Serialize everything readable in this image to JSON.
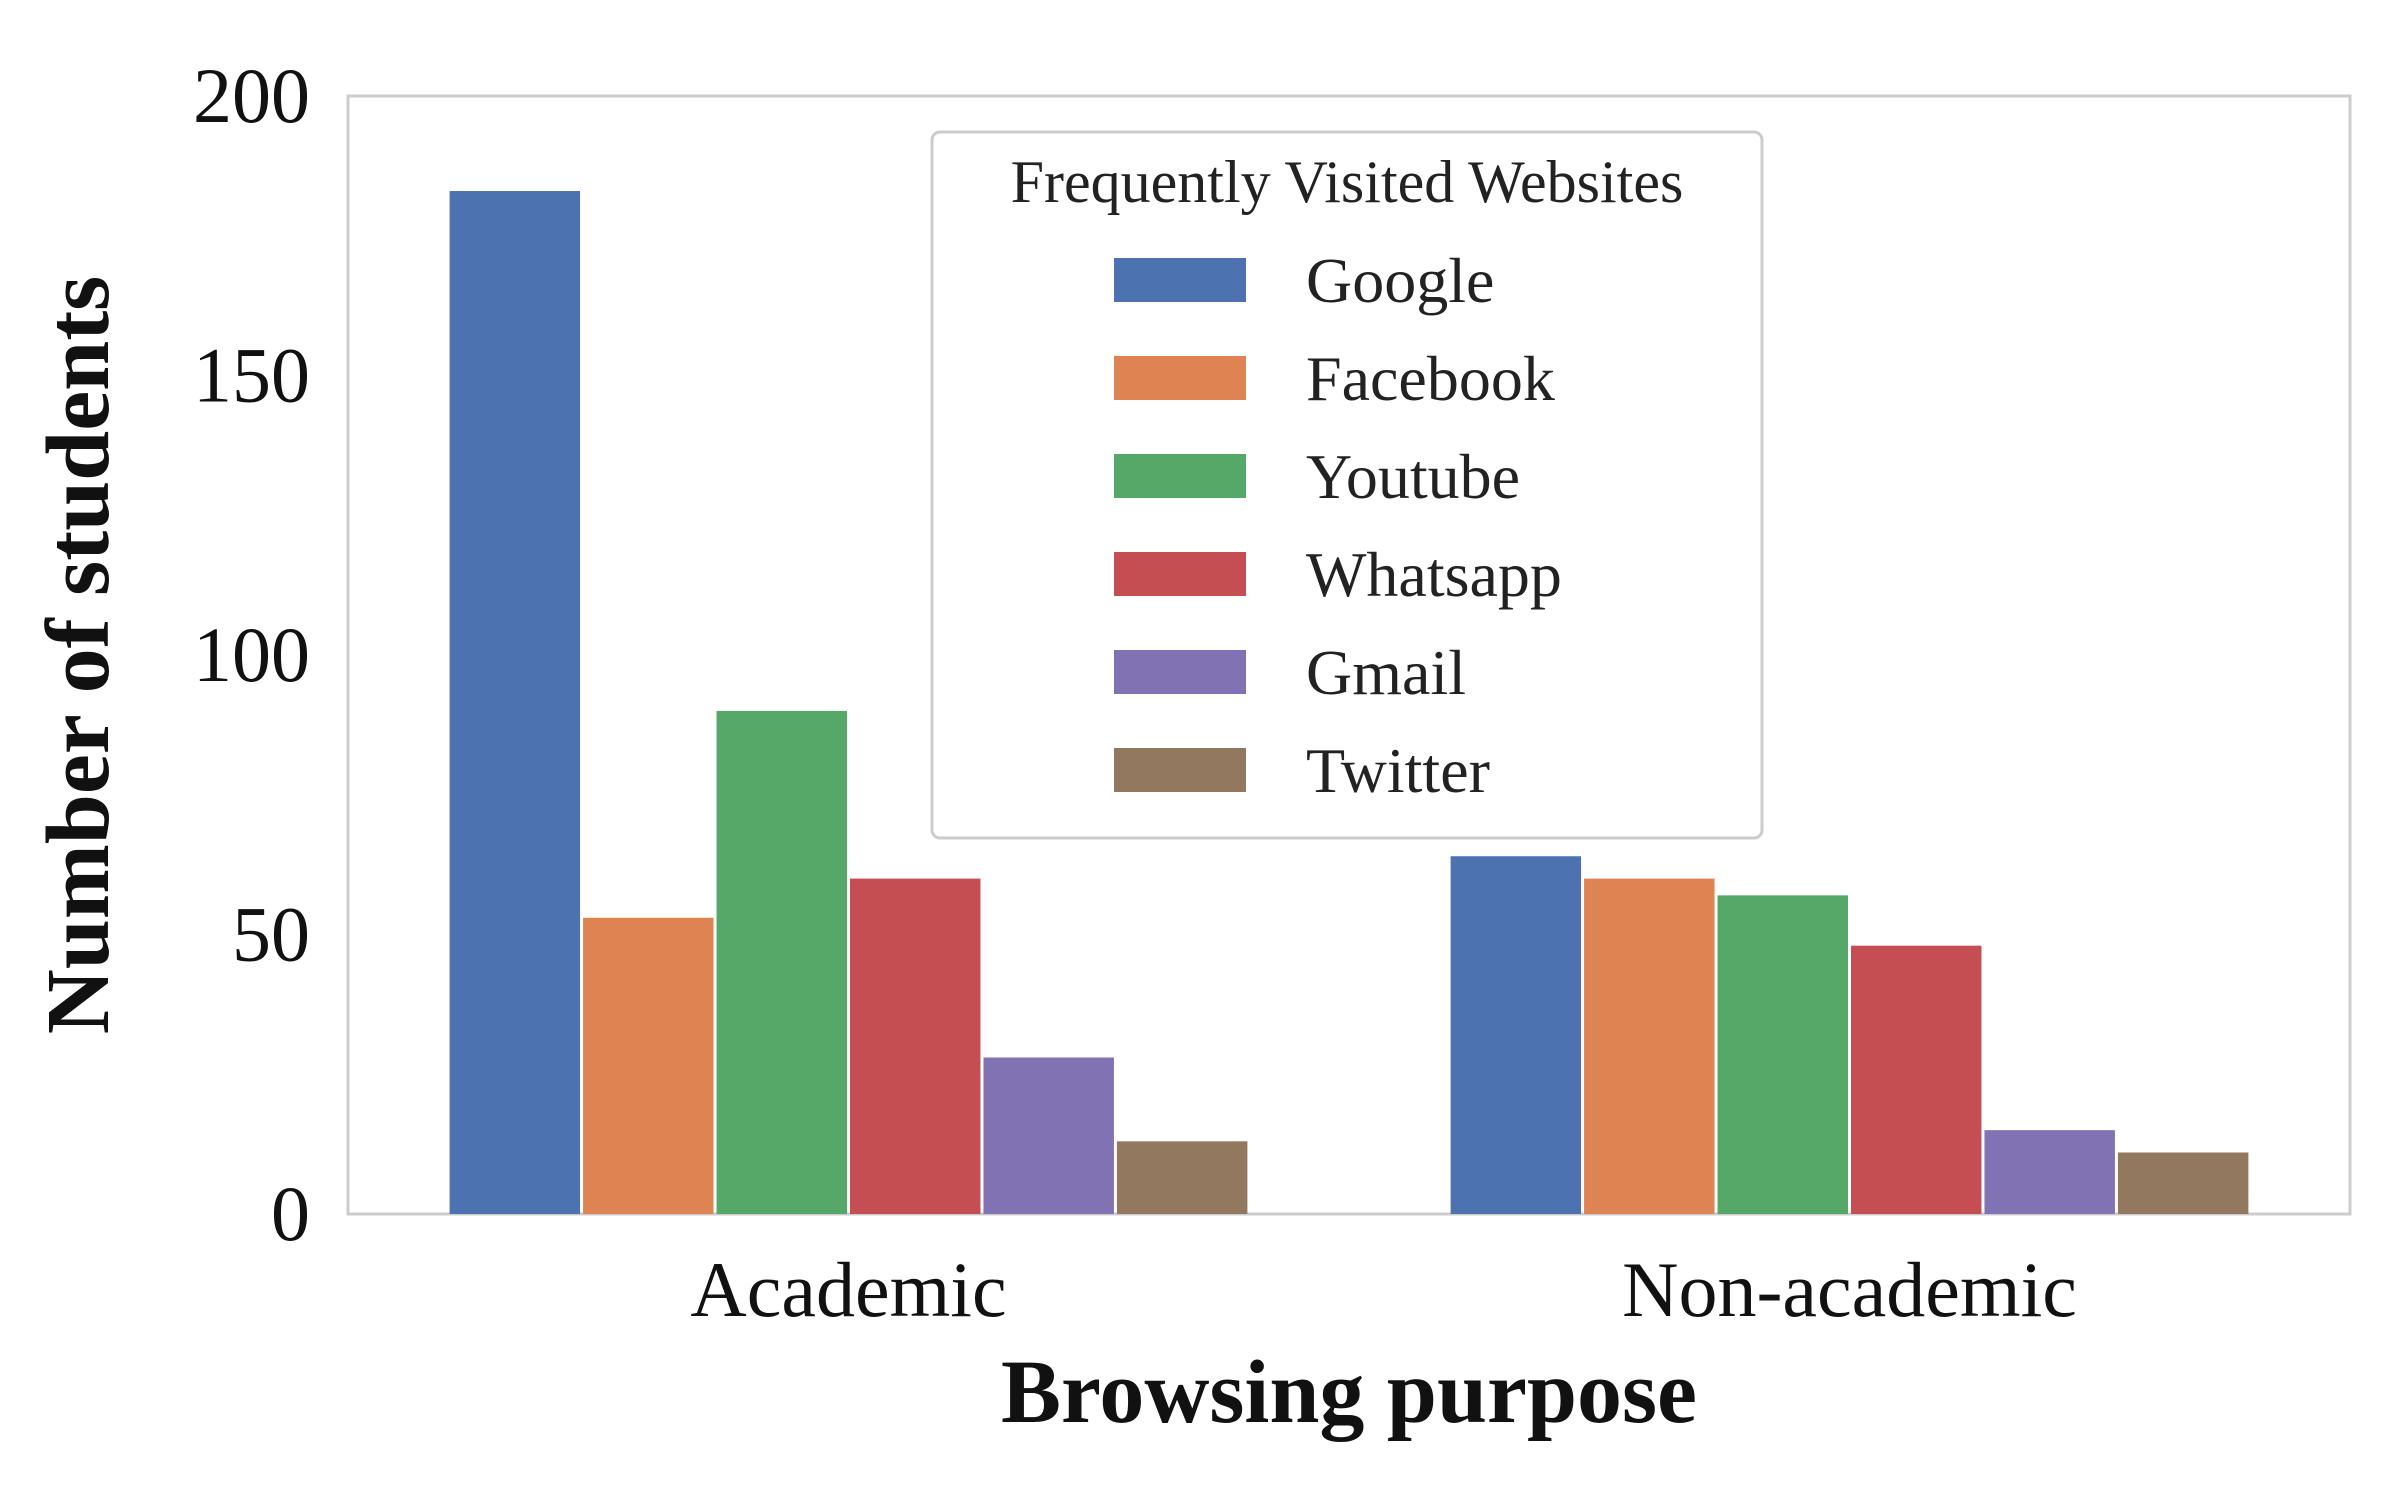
{
  "chart_data": {
    "type": "bar",
    "title": "",
    "xlabel": "Browsing purpose",
    "ylabel": "Number of students",
    "categories": [
      "Academic",
      "Non-academic"
    ],
    "ylim": [
      0,
      200
    ],
    "yticks": [
      "0",
      "50",
      "100",
      "150",
      "200"
    ],
    "grid": false,
    "legend": {
      "title": "Frequently Visited Websites",
      "placement": "top-center"
    },
    "series": [
      {
        "name": "Google",
        "values": [
          183,
          64
        ],
        "color": "#4c72b0"
      },
      {
        "name": "Facebook",
        "values": [
          53,
          60
        ],
        "color": "#dd8452"
      },
      {
        "name": "Youtube",
        "values": [
          90,
          57
        ],
        "color": "#55a868"
      },
      {
        "name": "Whatsapp",
        "values": [
          60,
          48
        ],
        "color": "#c44e52"
      },
      {
        "name": "Gmail",
        "values": [
          28,
          15
        ],
        "color": "#8172b3"
      },
      {
        "name": "Twitter",
        "values": [
          13,
          11
        ],
        "color": "#937860"
      }
    ]
  }
}
